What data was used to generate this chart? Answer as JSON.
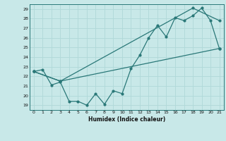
{
  "xlabel": "Humidex (Indice chaleur)",
  "bg_color": "#c8e8e8",
  "grid_color": "#b0d8d8",
  "line_color": "#2a7878",
  "xlim": [
    -0.5,
    21.5
  ],
  "ylim": [
    18.5,
    29.5
  ],
  "yticks": [
    19,
    20,
    21,
    22,
    23,
    24,
    25,
    26,
    27,
    28,
    29
  ],
  "xticks": [
    0,
    1,
    2,
    3,
    4,
    5,
    6,
    7,
    8,
    9,
    10,
    11,
    12,
    13,
    14,
    15,
    16,
    17,
    18,
    19,
    20,
    21
  ],
  "line1_x": [
    0,
    1,
    2,
    3,
    4,
    5,
    6,
    7,
    8,
    9,
    10,
    11,
    12,
    13,
    14,
    15,
    16,
    17,
    18,
    19,
    20,
    21
  ],
  "line1_y": [
    22.5,
    22.7,
    21.1,
    21.4,
    19.4,
    19.4,
    19.0,
    20.2,
    19.1,
    20.5,
    20.2,
    22.8,
    24.2,
    26.0,
    27.3,
    26.1,
    28.1,
    27.8,
    28.3,
    29.1,
    27.8,
    24.9
  ],
  "line2_x": [
    0,
    3,
    21
  ],
  "line2_y": [
    22.5,
    21.5,
    24.9
  ],
  "line3_x": [
    0,
    3,
    18,
    21
  ],
  "line3_y": [
    22.5,
    21.5,
    29.1,
    27.8
  ]
}
